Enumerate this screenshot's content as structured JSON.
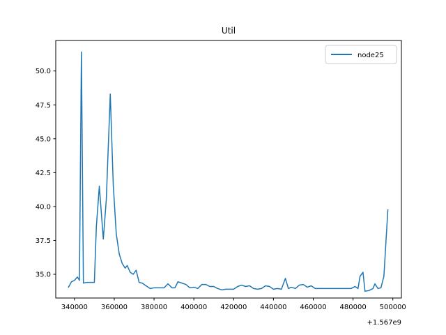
{
  "chart_data": {
    "type": "line",
    "title": "Util",
    "xlabel": "",
    "ylabel": "",
    "x_offset_label": "+1.567e9",
    "xlim": [
      1567330600,
      1567504300
    ],
    "ylim": [
      33.25,
      52.25
    ],
    "x_ticks": [
      {
        "value": 1567340000,
        "label": "340000"
      },
      {
        "value": 1567360000,
        "label": "360000"
      },
      {
        "value": 1567380000,
        "label": "380000"
      },
      {
        "value": 1567400000,
        "label": "400000"
      },
      {
        "value": 1567420000,
        "label": "420000"
      },
      {
        "value": 1567440000,
        "label": "440000"
      },
      {
        "value": 1567460000,
        "label": "460000"
      },
      {
        "value": 1567480000,
        "label": "480000"
      },
      {
        "value": 1567500000,
        "label": "500000"
      }
    ],
    "y_ticks": [
      {
        "value": 35.0,
        "label": "35.0"
      },
      {
        "value": 37.5,
        "label": "37.5"
      },
      {
        "value": 40.0,
        "label": "40.0"
      },
      {
        "value": 42.5,
        "label": "42.5"
      },
      {
        "value": 45.0,
        "label": "45.0"
      },
      {
        "value": 47.5,
        "label": "47.5"
      },
      {
        "value": 50.0,
        "label": "50.0"
      }
    ],
    "grid": false,
    "legend_position": "upper right",
    "series": [
      {
        "name": "node25",
        "color": "#1f77b4",
        "x": [
          1567337000,
          1567338500,
          1567340000,
          1567341500,
          1567342500,
          1567343500,
          1567344500,
          1567346000,
          1567348000,
          1567350000,
          1567351000,
          1567352500,
          1567354500,
          1567356000,
          1567358000,
          1567359500,
          1567361000,
          1567362500,
          1567364000,
          1567365500,
          1567366500,
          1567368000,
          1567369500,
          1567371000,
          1567372500,
          1567374000,
          1567376000,
          1567378000,
          1567380000,
          1567382500,
          1567385000,
          1567387000,
          1567389000,
          1567390500,
          1567392000,
          1567394000,
          1567396000,
          1567398000,
          1567400000,
          1567402000,
          1567404000,
          1567406000,
          1567408000,
          1567410000,
          1567412000,
          1567414000,
          1567416000,
          1567418000,
          1567420000,
          1567422000,
          1567424000,
          1567426000,
          1567428000,
          1567430000,
          1567432000,
          1567434000,
          1567436000,
          1567438000,
          1567440000,
          1567442000,
          1567444000,
          1567446000,
          1567447500,
          1567449000,
          1567451000,
          1567453000,
          1567455000,
          1567457000,
          1567459000,
          1567461000,
          1567463000,
          1567465000,
          1567467000,
          1567469000,
          1567471000,
          1567473000,
          1567475000,
          1567477000,
          1567479000,
          1567481000,
          1567482500,
          1567483500,
          1567485000,
          1567486000,
          1567488000,
          1567490000,
          1567491000,
          1567492500,
          1567494000,
          1567495500,
          1567497500
        ],
        "y": [
          34.05,
          34.45,
          34.55,
          34.8,
          34.55,
          51.4,
          34.35,
          34.4,
          34.4,
          34.4,
          38.5,
          41.5,
          37.6,
          40.5,
          48.3,
          41.6,
          38.0,
          36.5,
          35.8,
          35.45,
          35.65,
          35.15,
          35.0,
          35.3,
          34.4,
          34.35,
          34.15,
          33.95,
          34.0,
          34.0,
          34.0,
          34.3,
          34.0,
          34.0,
          34.45,
          34.35,
          34.25,
          34.0,
          34.05,
          33.95,
          34.25,
          34.25,
          34.1,
          34.1,
          33.95,
          33.85,
          33.9,
          33.9,
          33.9,
          34.1,
          34.2,
          34.1,
          34.15,
          33.95,
          33.9,
          33.95,
          34.15,
          34.1,
          33.9,
          33.95,
          33.9,
          34.7,
          33.95,
          34.05,
          33.95,
          34.2,
          34.25,
          34.05,
          34.15,
          33.95,
          33.95,
          33.95,
          33.95,
          33.95,
          33.95,
          33.95,
          33.95,
          33.95,
          33.95,
          34.1,
          33.95,
          34.85,
          35.15,
          33.75,
          33.8,
          33.95,
          34.3,
          33.95,
          34.0,
          34.85,
          39.75
        ]
      }
    ]
  }
}
